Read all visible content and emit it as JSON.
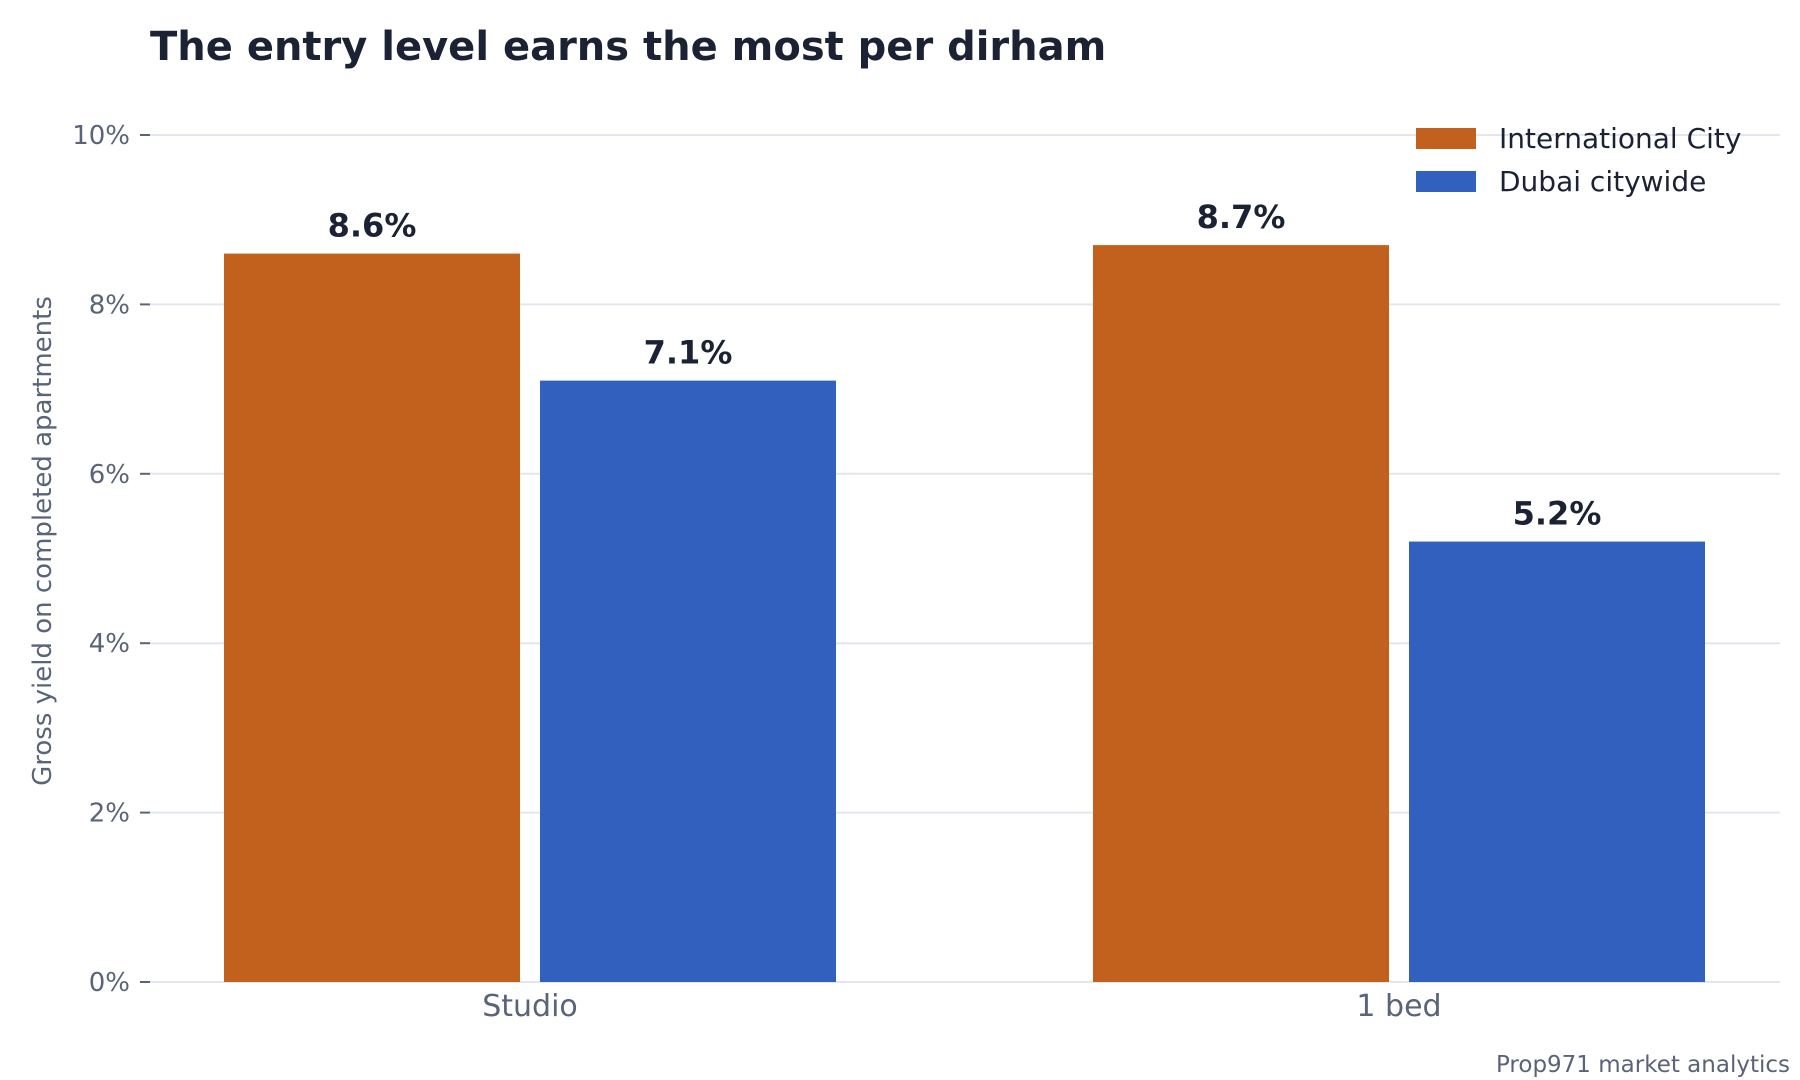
{
  "chart_data": {
    "type": "bar",
    "title": "The entry level earns the most per dirham",
    "ylabel": "Gross yield on completed apartments",
    "xlabel": "",
    "categories": [
      "Studio",
      "1 bed"
    ],
    "series": [
      {
        "name": "International City",
        "color": "#c2601e",
        "values": [
          8.6,
          8.7
        ],
        "labels": [
          "8.6%",
          "8.7%"
        ]
      },
      {
        "name": "Dubai citywide",
        "color": "#3160bf",
        "values": [
          7.1,
          5.2
        ],
        "labels": [
          "7.1%",
          "5.2%"
        ]
      }
    ],
    "ylim": [
      0,
      10
    ],
    "yticks": [
      0,
      2,
      4,
      6,
      8,
      10
    ],
    "ytick_labels": [
      "0%",
      "2%",
      "4%",
      "6%",
      "8%",
      "10%"
    ],
    "grid": true,
    "legend_position": "top-right",
    "source": "Prop971 market analytics"
  }
}
